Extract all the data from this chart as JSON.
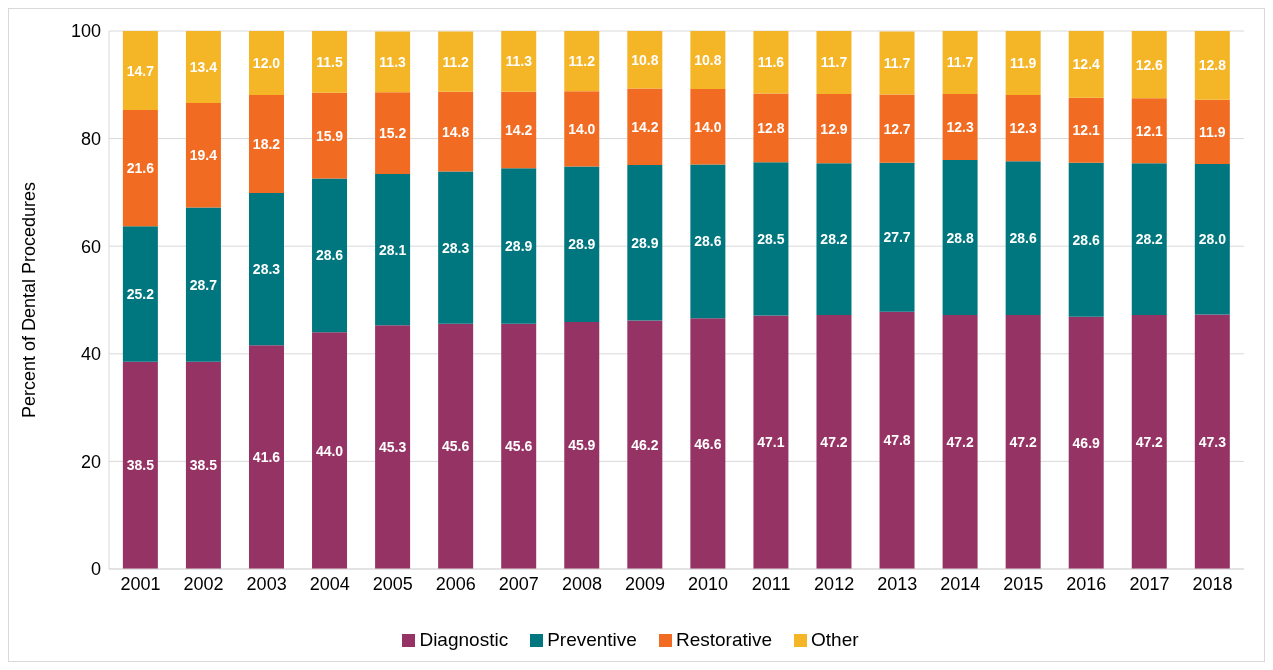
{
  "chart_data": {
    "type": "bar",
    "stacked": true,
    "ylabel": "Percent of Dental Procedures",
    "categories": [
      "2001",
      "2002",
      "2003",
      "2004",
      "2005",
      "2006",
      "2007",
      "2008",
      "2009",
      "2010",
      "2011",
      "2012",
      "2013",
      "2014",
      "2015",
      "2016",
      "2017",
      "2018"
    ],
    "series": [
      {
        "name": "Diagnostic",
        "color": "#953464",
        "values": [
          38.5,
          38.5,
          41.6,
          44.0,
          45.3,
          45.6,
          45.6,
          45.9,
          46.2,
          46.6,
          47.1,
          47.2,
          47.8,
          47.2,
          47.2,
          46.9,
          47.2,
          47.3
        ],
        "value_labels": [
          "38.5",
          "38.5",
          "41.6",
          "44.0",
          "45.3",
          "45.6",
          "45.6",
          "45.9",
          "46.2",
          "46.6",
          "47.1",
          "47.2",
          "47.8",
          "47.2",
          "47.2",
          "46.9",
          "47.2",
          "47.3"
        ]
      },
      {
        "name": "Preventive",
        "color": "#00767e",
        "values": [
          25.2,
          28.7,
          28.3,
          28.6,
          28.1,
          28.3,
          28.9,
          28.9,
          28.9,
          28.6,
          28.5,
          28.2,
          27.7,
          28.8,
          28.6,
          28.6,
          28.2,
          28.0
        ],
        "value_labels": [
          "25.2",
          "28.7",
          "28.3",
          "28.6",
          "28.1",
          "28.3",
          "28.9",
          "28.9",
          "28.9",
          "28.6",
          "28.5",
          "28.2",
          "27.7",
          "28.8",
          "28.6",
          "28.6",
          "28.2",
          "28.0"
        ]
      },
      {
        "name": "Restorative",
        "color": "#f26b22",
        "values": [
          21.6,
          19.4,
          18.2,
          15.9,
          15.2,
          14.8,
          14.2,
          14.0,
          14.2,
          14.0,
          12.8,
          12.9,
          12.7,
          12.3,
          12.3,
          12.1,
          12.1,
          11.9
        ],
        "value_labels": [
          "21.6",
          "19.4",
          "18.2",
          "15.9",
          "15.2",
          "14.8",
          "14.2",
          "14.0",
          "14.2",
          "14.0",
          "12.8",
          "12.9",
          "12.7",
          "12.3",
          "12.3",
          "12.1",
          "12.1",
          "11.9"
        ]
      },
      {
        "name": "Other",
        "color": "#f4b526",
        "values": [
          14.7,
          13.4,
          12.0,
          11.5,
          11.3,
          11.2,
          11.3,
          11.2,
          10.8,
          10.8,
          11.6,
          11.7,
          11.7,
          11.7,
          11.9,
          12.4,
          12.6,
          12.8
        ],
        "value_labels": [
          "14.7",
          "13.4",
          "12.0",
          "11.5",
          "11.3",
          "11.2",
          "11.3",
          "11.2",
          "10.8",
          "10.8",
          "11.6",
          "11.7",
          "11.7",
          "11.7",
          "11.9",
          "12.4",
          "12.6",
          "12.8"
        ]
      }
    ],
    "ylim": [
      0,
      100
    ],
    "yticks": [
      0,
      20,
      40,
      60,
      80,
      100
    ],
    "grid": "y",
    "legend": "bottom"
  }
}
